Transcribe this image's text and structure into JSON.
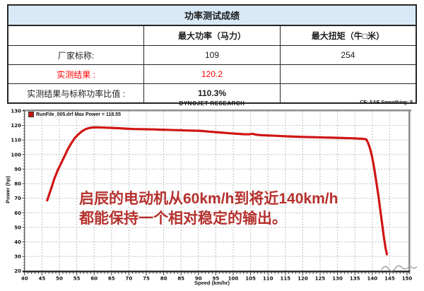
{
  "table": {
    "title": "功率测试成绩",
    "columns": [
      "",
      "最大功率（马力）",
      "最大扭矩（牛□米）"
    ],
    "rows": [
      {
        "label": "厂家标称:",
        "values": [
          "109",
          "254"
        ]
      },
      {
        "label": "实测结果 :",
        "values": [
          "120.2",
          ""
        ]
      },
      {
        "label": "实测结果与标称功率比值 :",
        "values": [
          "110.3%",
          ""
        ]
      }
    ],
    "accent_red": "#ff0000",
    "title_bg": "#d8eaf8"
  },
  "chart_data": {
    "type": "line",
    "title": "DYNOJET RESEARCH",
    "top_right_note": "CF: SAE  Smoothing: 5",
    "legend": {
      "label": "RunFile_005.drf Max Power = 118.55",
      "marker_color": "#cc1512"
    },
    "xlabel": "Speed (km/hr)",
    "ylabel": "Power (hp)",
    "xlim": [
      40,
      150
    ],
    "xtick_step": 5,
    "ylim": [
      20,
      130
    ],
    "ytick_step": 10,
    "grid": "dashed",
    "series": [
      {
        "name": "RunFile_005.drf",
        "color": "#d01515",
        "points": [
          [
            46.5,
            68.5
          ],
          [
            47.0,
            72
          ],
          [
            47.7,
            77
          ],
          [
            48.5,
            83
          ],
          [
            49.5,
            89
          ],
          [
            50.5,
            94
          ],
          [
            51.5,
            99
          ],
          [
            52.5,
            104
          ],
          [
            53.5,
            108
          ],
          [
            54.5,
            111.5
          ],
          [
            55.5,
            114
          ],
          [
            56.5,
            116
          ],
          [
            57.5,
            117.4
          ],
          [
            58.5,
            118.2
          ],
          [
            59.5,
            118.6
          ],
          [
            61,
            118.7
          ],
          [
            63,
            118.5
          ],
          [
            65,
            118.3
          ],
          [
            67,
            118.1
          ],
          [
            69,
            117.8
          ],
          [
            71,
            117.6
          ],
          [
            73,
            117.5
          ],
          [
            75,
            117.4
          ],
          [
            77,
            117.3
          ],
          [
            79,
            117.1
          ],
          [
            81,
            117.0
          ],
          [
            83,
            116.8
          ],
          [
            85,
            116.7
          ],
          [
            87,
            116.5
          ],
          [
            89,
            116.4
          ],
          [
            91,
            116.2
          ],
          [
            93,
            115.8
          ],
          [
            95,
            115.4
          ],
          [
            97,
            115.0
          ],
          [
            99,
            114.6
          ],
          [
            101,
            114.3
          ],
          [
            103,
            114.0
          ],
          [
            104.5,
            113.9
          ],
          [
            105.5,
            114.3
          ],
          [
            106.5,
            113.7
          ],
          [
            108,
            113.3
          ],
          [
            110,
            113.1
          ],
          [
            112,
            112.9
          ],
          [
            114,
            112.7
          ],
          [
            116,
            112.5
          ],
          [
            118,
            112.3
          ],
          [
            120,
            112.1
          ],
          [
            122,
            112.0
          ],
          [
            124,
            111.9
          ],
          [
            126,
            111.7
          ],
          [
            128,
            111.6
          ],
          [
            130,
            111.5
          ],
          [
            132,
            111.3
          ],
          [
            134,
            111.2
          ],
          [
            136,
            111.0
          ],
          [
            137.5,
            110.8
          ],
          [
            138.3,
            110.4
          ],
          [
            138.8,
            108
          ],
          [
            139.3,
            104.5
          ],
          [
            139.8,
            100
          ],
          [
            140.3,
            94
          ],
          [
            140.8,
            87
          ],
          [
            141.3,
            79
          ],
          [
            141.8,
            71
          ],
          [
            142.3,
            62
          ],
          [
            142.8,
            53
          ],
          [
            143.3,
            44
          ],
          [
            143.8,
            36
          ],
          [
            144.2,
            31.5
          ]
        ]
      }
    ],
    "annotation": {
      "lines": [
        "启辰的电动机从60km/h到将近140km/h",
        "都能保持一个相对稳定的输出。"
      ],
      "color": "#b5312d"
    },
    "max_power_label_hp": "118.55"
  }
}
